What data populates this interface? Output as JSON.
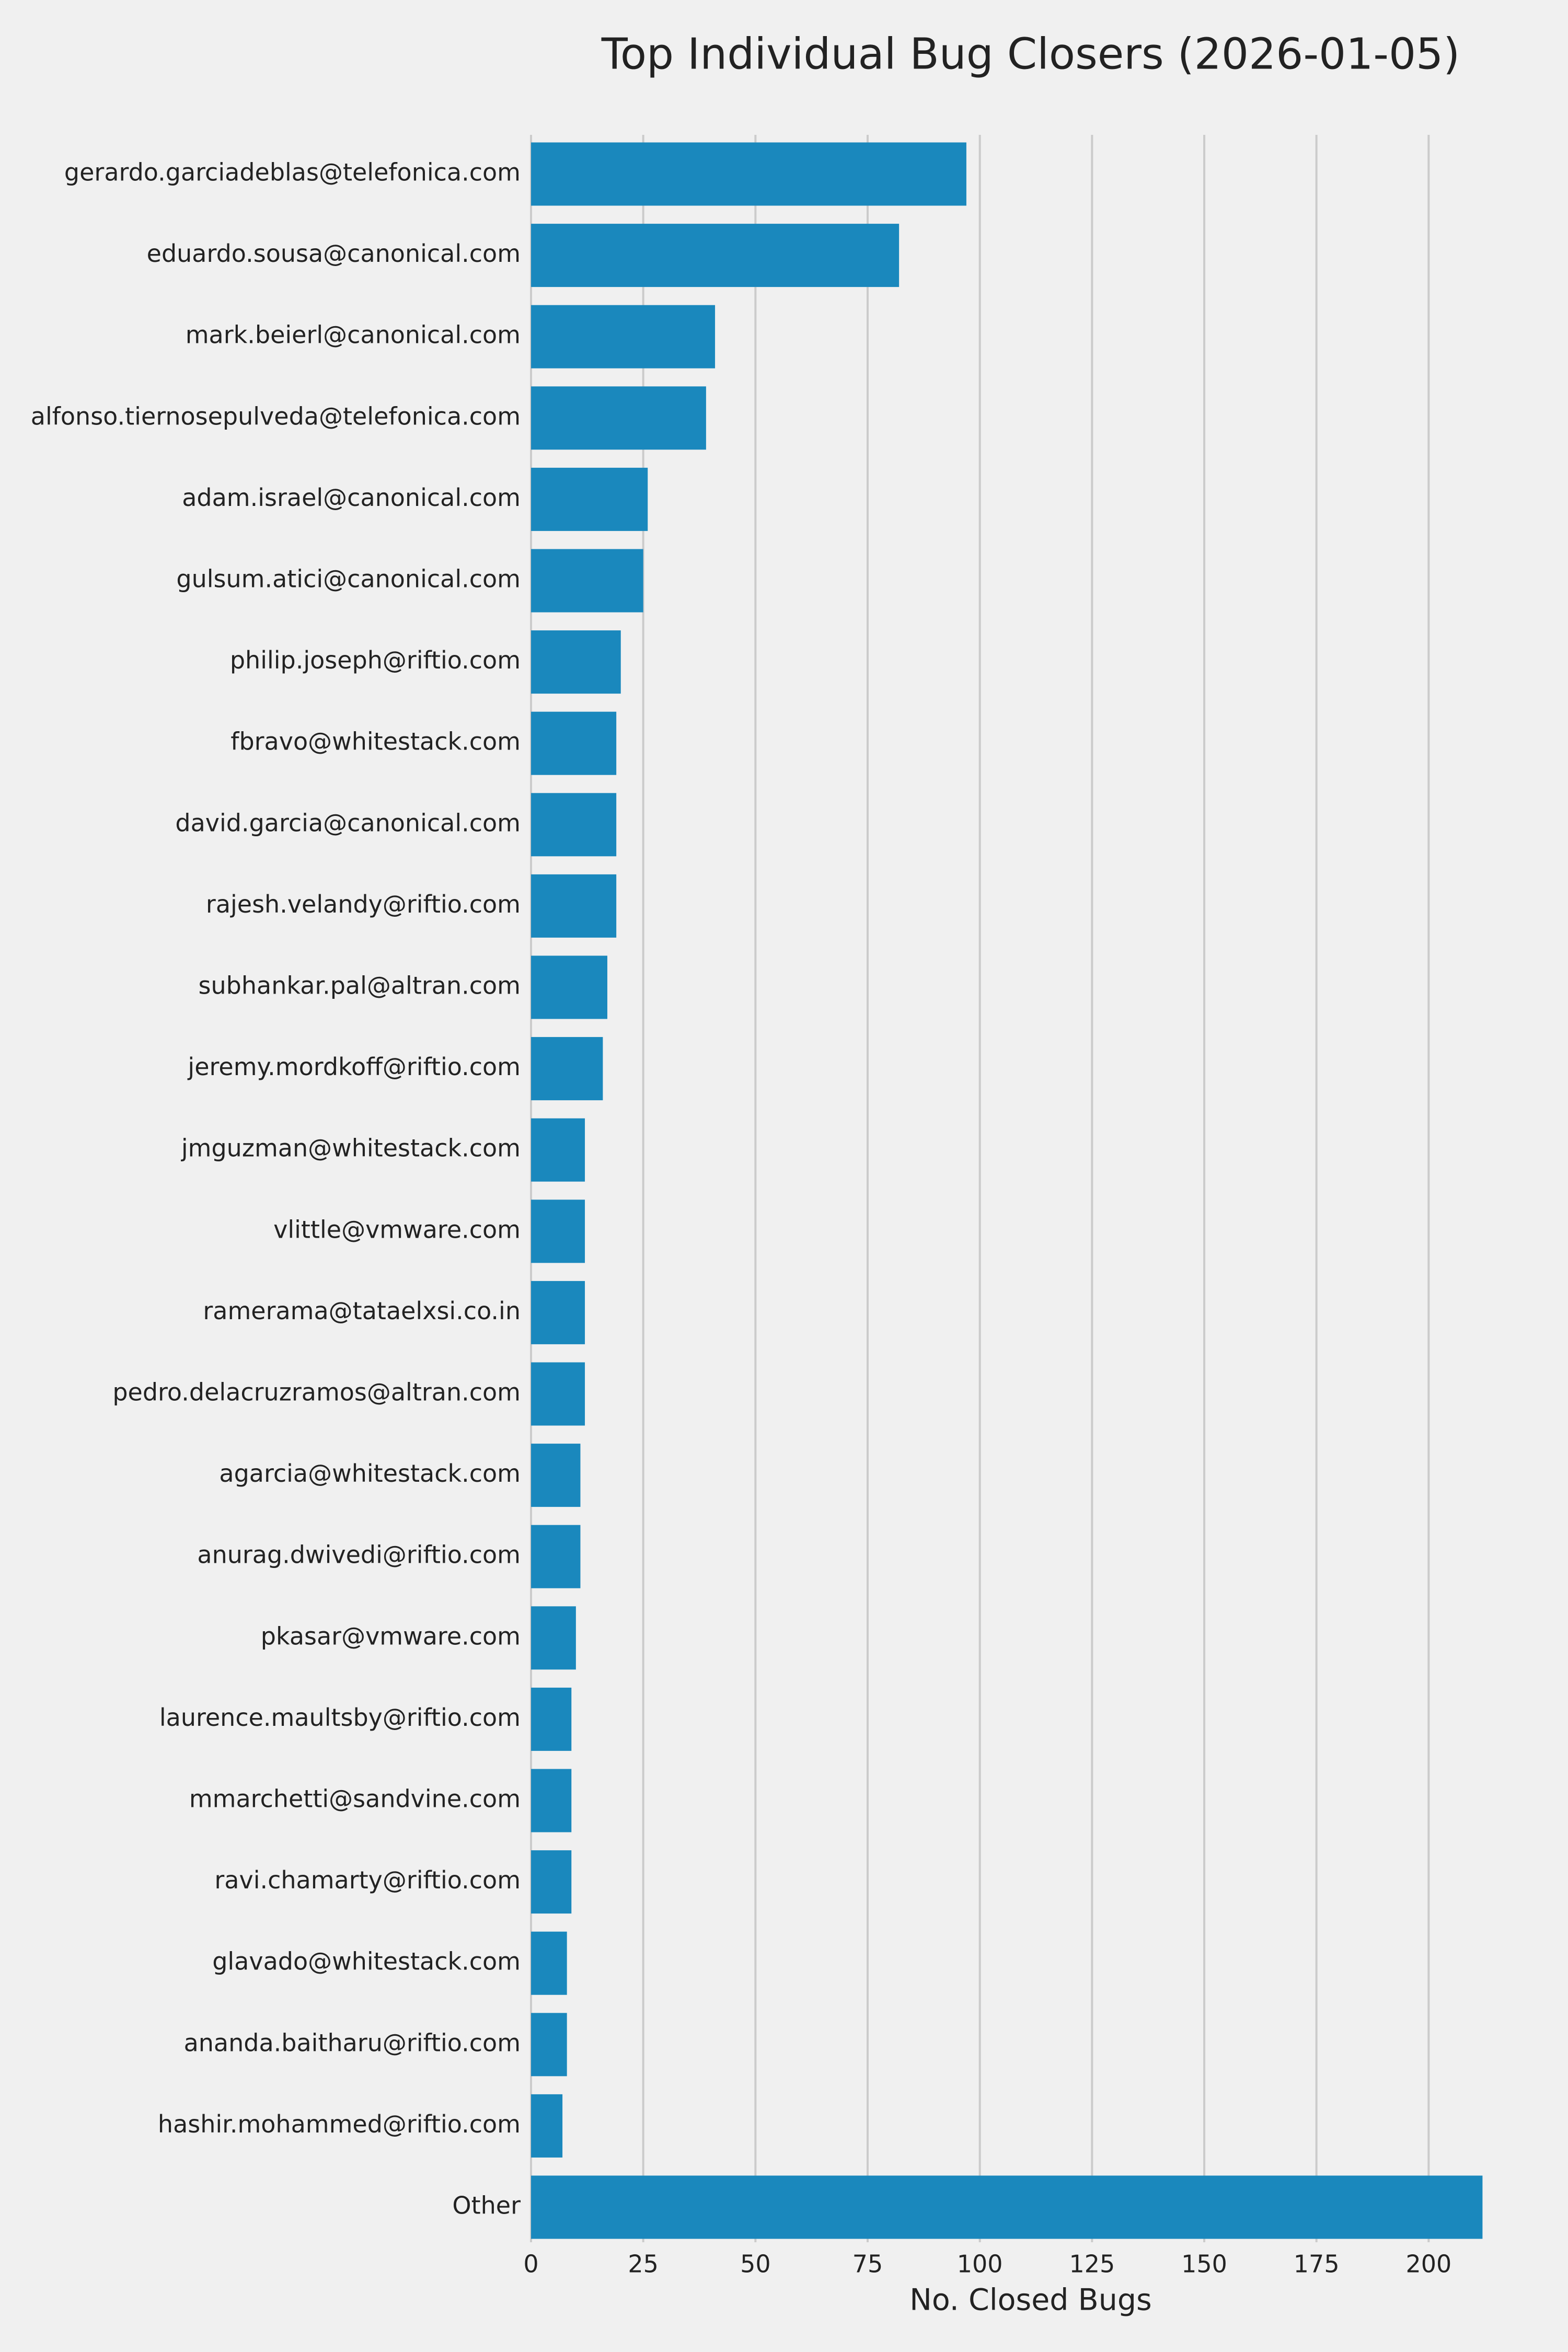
{
  "chart_data": {
    "type": "barh",
    "title": "Top Individual Bug Closers (2026-01-05)",
    "x_label": "No. Closed Bugs",
    "categories": [
      "gerardo.garciadeblas@telefonica.com",
      "eduardo.sousa@canonical.com",
      "mark.beierl@canonical.com",
      "alfonso.tiernosepulveda@telefonica.com",
      "adam.israel@canonical.com",
      "gulsum.atici@canonical.com",
      "philip.joseph@riftio.com",
      "fbravo@whitestack.com",
      "david.garcia@canonical.com",
      "rajesh.velandy@riftio.com",
      "subhankar.pal@altran.com",
      "jeremy.mordkoff@riftio.com",
      "jmguzman@whitestack.com",
      "vlittle@vmware.com",
      "ramerama@tataelxsi.co.in",
      "pedro.delacruzramos@altran.com",
      "agarcia@whitestack.com",
      "anurag.dwivedi@riftio.com",
      "pkasar@vmware.com",
      "laurence.maultsby@riftio.com",
      "mmarchetti@sandvine.com",
      "ravi.chamarty@riftio.com",
      "glavado@whitestack.com",
      "ananda.baitharu@riftio.com",
      "hashir.mohammed@riftio.com",
      "Other"
    ],
    "values": [
      97,
      82,
      41,
      39,
      26,
      25,
      20,
      19,
      19,
      19,
      17,
      16,
      12,
      12,
      12,
      12,
      11,
      11,
      10,
      9,
      9,
      9,
      8,
      8,
      7,
      212
    ],
    "color": "#1a88bd",
    "xlim": [
      0,
      213
    ],
    "xticks": [
      0,
      25,
      50,
      75,
      100,
      125,
      150,
      175,
      200
    ],
    "grid": true
  }
}
